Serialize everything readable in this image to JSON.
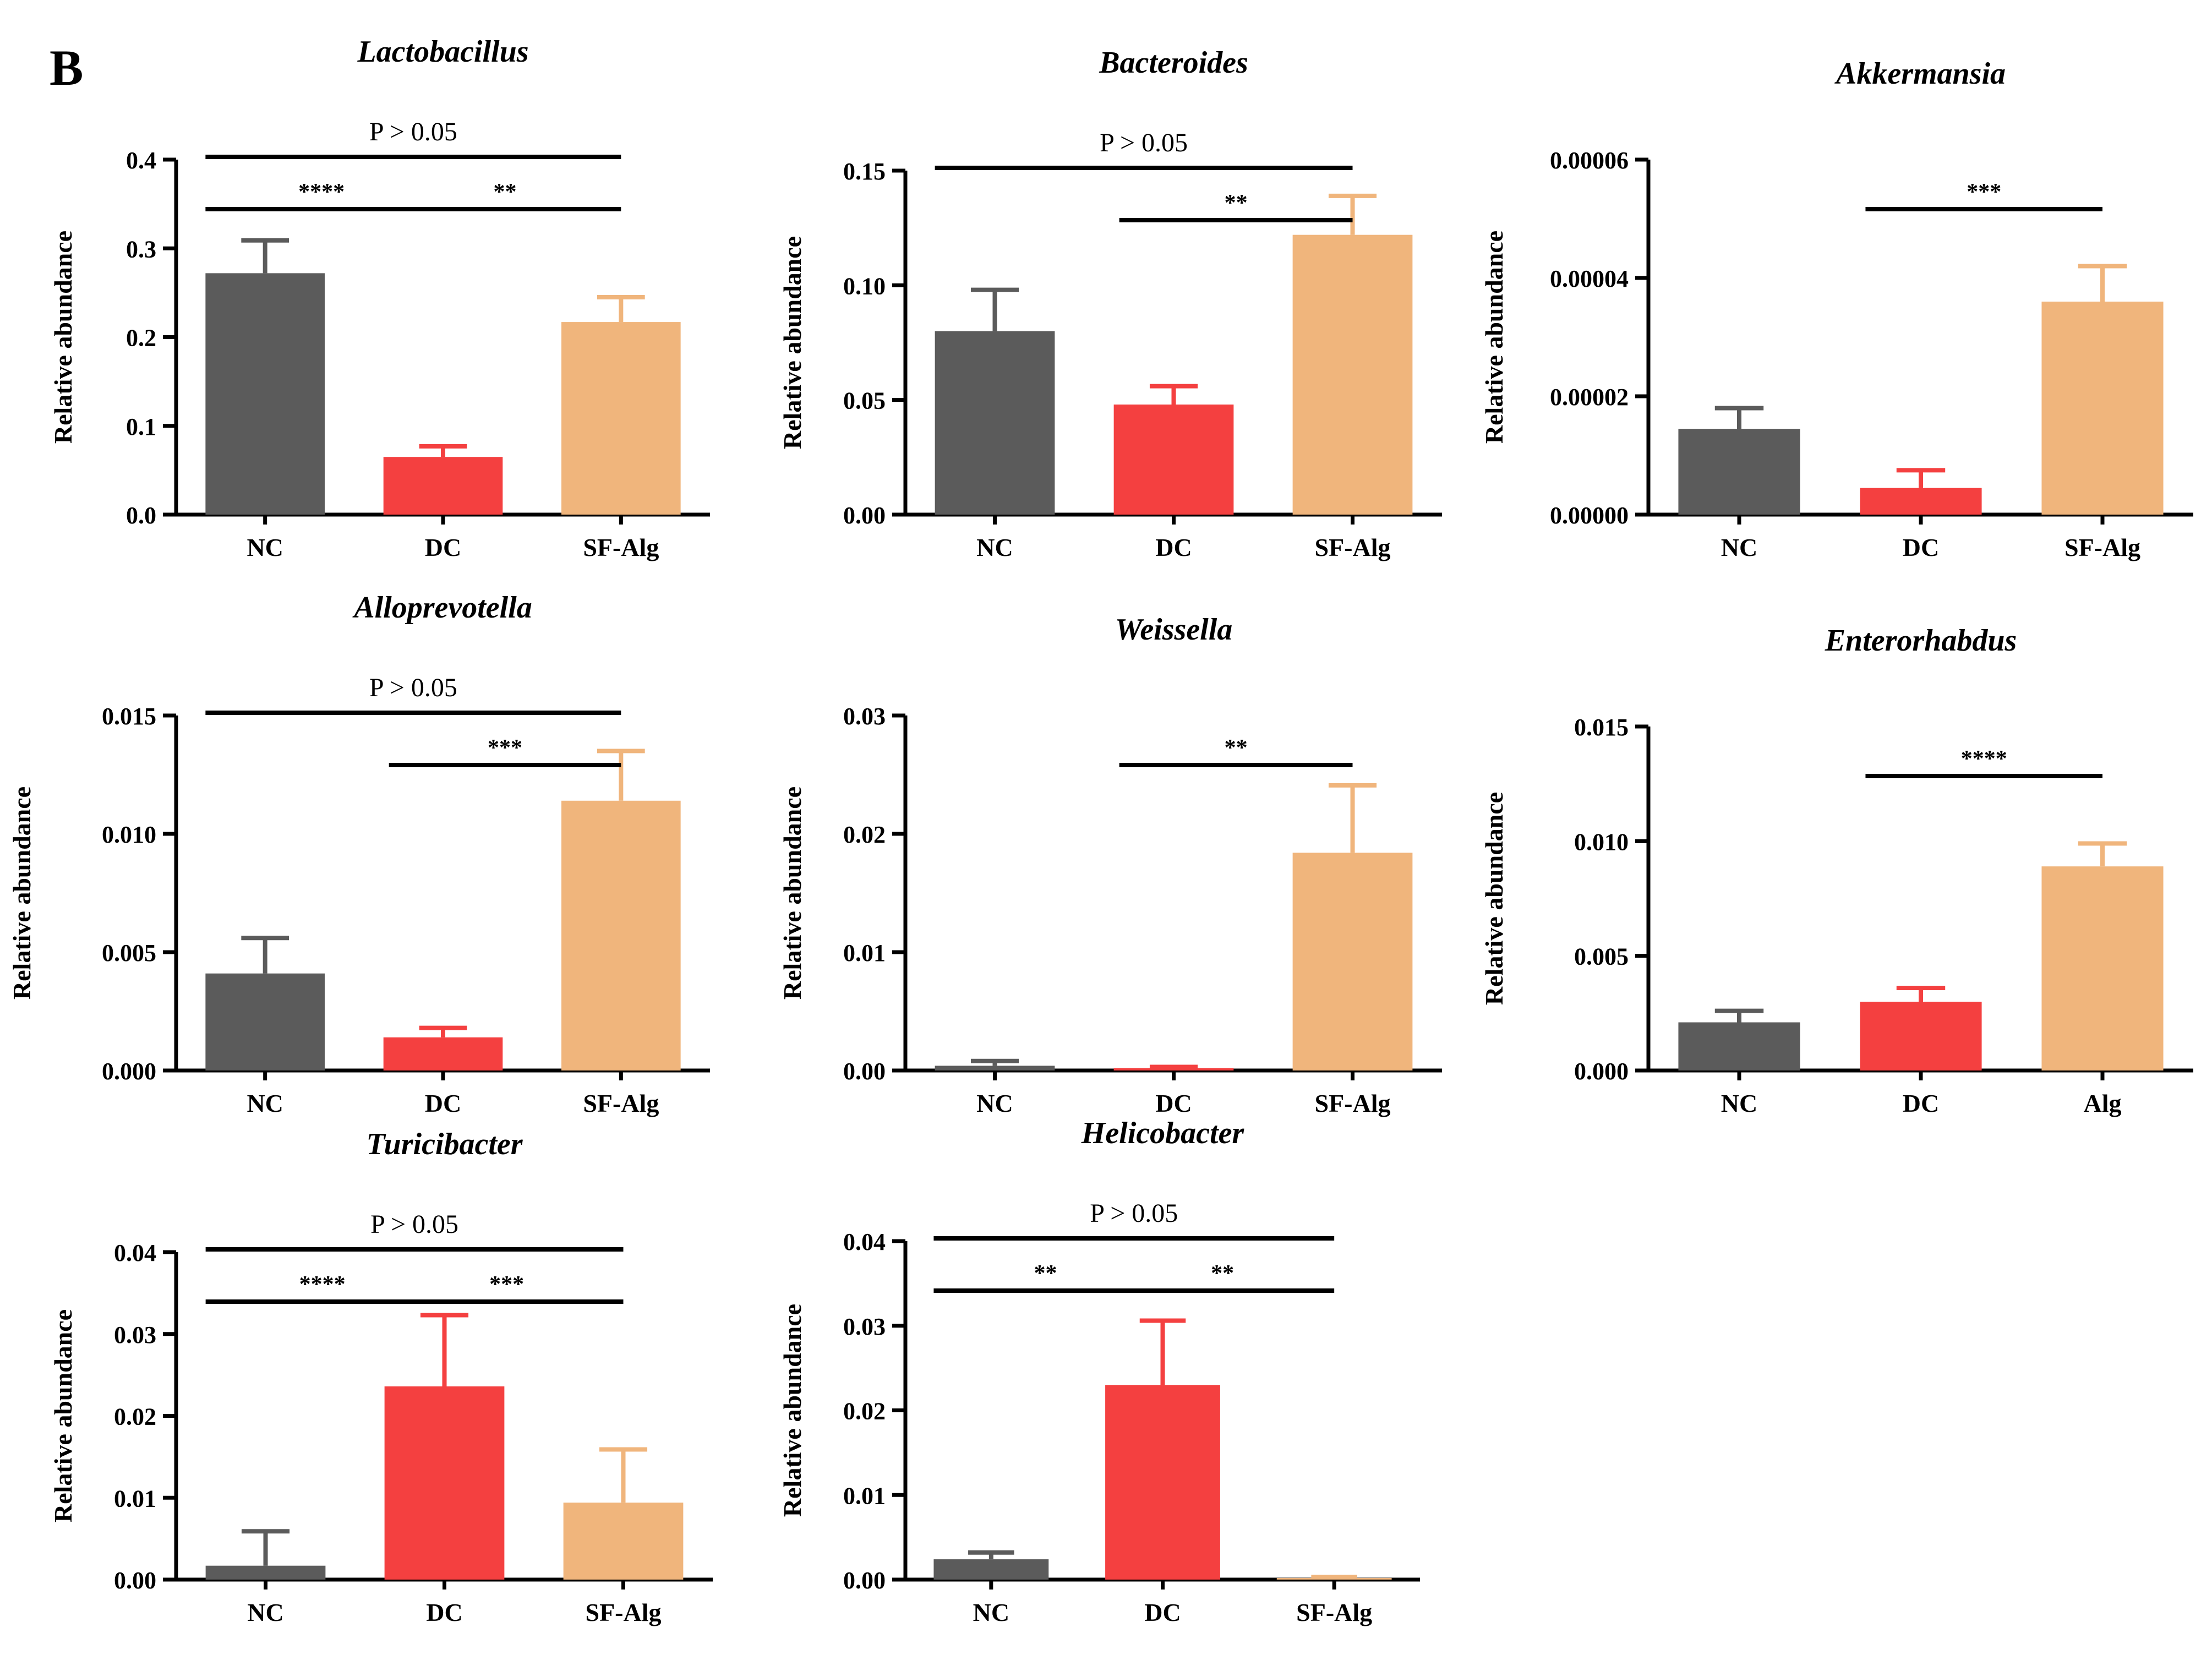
{
  "panel_label": "B",
  "colors": {
    "NC": "#5b5b5b",
    "DC": "#f44040",
    "SF-Alg": "#f0b57c",
    "axis": "#000000"
  },
  "chart_data": [
    {
      "type": "bar",
      "title": "Lactobacillus",
      "ylabel": "Relative abundance",
      "categories": [
        "NC",
        "DC",
        "SF-Alg"
      ],
      "values": [
        0.272,
        0.065,
        0.217
      ],
      "errors": [
        0.037,
        0.012,
        0.028
      ],
      "ylim": [
        0,
        0.4
      ],
      "yticks": [
        "0.0",
        "0.1",
        "0.2",
        "0.3",
        "0.4"
      ],
      "significance": [
        {
          "from": 0,
          "to": 2,
          "label": "P > 0.05",
          "level": 2
        },
        {
          "from": 0,
          "to": 1,
          "label": "****",
          "level": 1
        },
        {
          "from": 1,
          "to": 2,
          "label": "**",
          "level": 1
        }
      ]
    },
    {
      "type": "bar",
      "title": "Bacteroides",
      "ylabel": "Relative abundance",
      "categories": [
        "NC",
        "DC",
        "SF-Alg"
      ],
      "values": [
        0.08,
        0.048,
        0.122
      ],
      "errors": [
        0.018,
        0.008,
        0.017
      ],
      "ylim": [
        0,
        0.15
      ],
      "yticks": [
        "0.00",
        "0.05",
        "0.10",
        "0.15"
      ],
      "significance": [
        {
          "from": 0,
          "to": 2,
          "label": "P > 0.05",
          "level": 2
        },
        {
          "from": 1,
          "to": 2,
          "label": "**",
          "level": 1
        }
      ]
    },
    {
      "type": "bar",
      "title": "Akkermansia",
      "ylabel": "Relative abundance",
      "categories": [
        "NC",
        "DC",
        "SF-Alg"
      ],
      "values": [
        1.45e-05,
        4.5e-06,
        3.6e-05
      ],
      "errors": [
        3.5e-06,
        3e-06,
        6e-06
      ],
      "ylim": [
        0,
        6e-05
      ],
      "yticks": [
        "0.00000",
        "0.00002",
        "0.00004",
        "0.00006"
      ],
      "significance": [
        {
          "from": 1,
          "to": 2,
          "label": "***",
          "level": 1
        }
      ]
    },
    {
      "type": "bar",
      "title": "Alloprevotella",
      "ylabel": "Relative abundance",
      "categories": [
        "NC",
        "DC",
        "SF-Alg"
      ],
      "values": [
        0.0041,
        0.0014,
        0.0114
      ],
      "errors": [
        0.0015,
        0.0004,
        0.0021
      ],
      "ylim": [
        0,
        0.015
      ],
      "yticks": [
        "0.000",
        "0.005",
        "0.010",
        "0.015"
      ],
      "significance": [
        {
          "from": 0,
          "to": 2,
          "label": "P > 0.05",
          "level": 2
        },
        {
          "from": 1,
          "to": 2,
          "label": "***",
          "level": 1
        }
      ]
    },
    {
      "type": "bar",
      "title": "Weissella",
      "ylabel": "Relative abundance",
      "categories": [
        "NC",
        "DC",
        "SF-Alg"
      ],
      "values": [
        0.0004,
        0.0002,
        0.0184
      ],
      "errors": [
        0.0004,
        0.0001,
        0.0057
      ],
      "ylim": [
        0,
        0.03
      ],
      "yticks": [
        "0.00",
        "0.01",
        "0.02",
        "0.03"
      ],
      "significance": [
        {
          "from": 1,
          "to": 2,
          "label": "**",
          "level": 1
        }
      ]
    },
    {
      "type": "bar",
      "title": "Enterorhabdus",
      "ylabel": "Relative abundance",
      "categories": [
        "NC",
        "DC",
        "Alg"
      ],
      "values": [
        0.0021,
        0.003,
        0.0089
      ],
      "errors": [
        0.0005,
        0.0006,
        0.001
      ],
      "ylim": [
        0,
        0.015
      ],
      "yticks": [
        "0.000",
        "0.005",
        "0.010",
        "0.015"
      ],
      "significance": [
        {
          "from": 1,
          "to": 2,
          "label": "****",
          "level": 1
        }
      ]
    },
    {
      "type": "bar",
      "title": "Turicibacter",
      "ylabel": "Relative abundance",
      "categories": [
        "NC",
        "DC",
        "SF-Alg"
      ],
      "values": [
        0.0017,
        0.0236,
        0.0094
      ],
      "errors": [
        0.0042,
        0.0087,
        0.0065
      ],
      "ylim": [
        0,
        0.04
      ],
      "yticks": [
        "0.00",
        "0.01",
        "0.02",
        "0.03",
        "0.04"
      ],
      "significance": [
        {
          "from": 0,
          "to": 2,
          "label": "P > 0.05",
          "level": 2
        },
        {
          "from": 0,
          "to": 1,
          "label": "****",
          "level": 1
        },
        {
          "from": 1,
          "to": 2,
          "label": "***",
          "level": 1
        }
      ]
    },
    {
      "type": "bar",
      "title": "Helicobacter",
      "ylabel": "Relative abundance",
      "categories": [
        "NC",
        "DC",
        "SF-Alg"
      ],
      "values": [
        0.0024,
        0.023,
        0.0002
      ],
      "errors": [
        0.0008,
        0.0076,
        0.0001
      ],
      "ylim": [
        0,
        0.04
      ],
      "yticks": [
        "0.00",
        "0.01",
        "0.02",
        "0.03",
        "0.04"
      ],
      "significance": [
        {
          "from": 0,
          "to": 2,
          "label": "P > 0.05",
          "level": 2
        },
        {
          "from": 0,
          "to": 1,
          "label": "**",
          "level": 1
        },
        {
          "from": 1,
          "to": 2,
          "label": "**",
          "level": 1
        }
      ]
    }
  ]
}
